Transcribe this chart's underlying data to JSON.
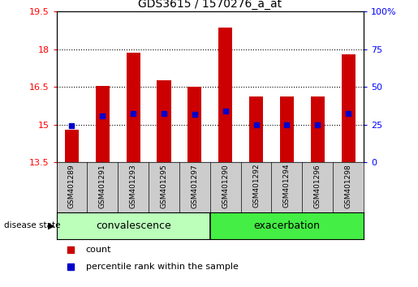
{
  "title": "GDS3615 / 1570276_a_at",
  "samples": [
    "GSM401289",
    "GSM401291",
    "GSM401293",
    "GSM401295",
    "GSM401297",
    "GSM401290",
    "GSM401292",
    "GSM401294",
    "GSM401296",
    "GSM401298"
  ],
  "count_values": [
    14.8,
    16.55,
    17.85,
    16.75,
    16.5,
    18.85,
    16.1,
    16.1,
    16.1,
    17.8
  ],
  "percentile_values": [
    14.95,
    15.35,
    15.45,
    15.45,
    15.4,
    15.55,
    14.98,
    14.98,
    14.98,
    15.45
  ],
  "groups": [
    "convalescence",
    "convalescence",
    "convalescence",
    "convalescence",
    "convalescence",
    "exacerbation",
    "exacerbation",
    "exacerbation",
    "exacerbation",
    "exacerbation"
  ],
  "ylim_left": [
    13.5,
    19.5
  ],
  "ylim_right": [
    0,
    100
  ],
  "yticks_left": [
    13.5,
    15.0,
    16.5,
    18.0,
    19.5
  ],
  "yticks_right": [
    0,
    25,
    50,
    75,
    100
  ],
  "ytick_labels_left": [
    "13.5",
    "15",
    "16.5",
    "18",
    "19.5"
  ],
  "ytick_labels_right": [
    "0",
    "25",
    "50",
    "75",
    "100%"
  ],
  "bar_color": "#cc0000",
  "dot_color": "#0000cc",
  "base_value": 13.5,
  "group_colors": {
    "convalescence": "#bbffbb",
    "exacerbation": "#44ee44"
  },
  "legend_count_label": "count",
  "legend_percentile_label": "percentile rank within the sample",
  "disease_state_label": "disease state",
  "tick_label_area_color": "#cccccc",
  "bar_width": 0.45
}
